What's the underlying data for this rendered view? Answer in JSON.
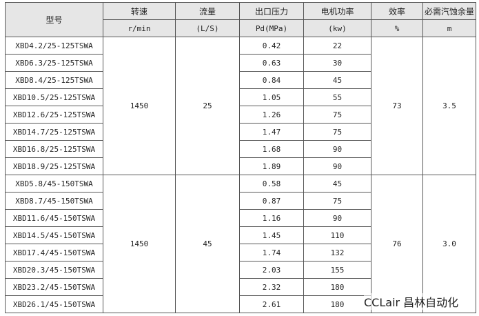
{
  "headers": {
    "model": "型号",
    "speed": "转速",
    "flow": "流量",
    "pressure": "出口压力",
    "power": "电机功率",
    "efficiency": "效率",
    "npsh": "必需汽蚀余量"
  },
  "units": {
    "speed": "r/min",
    "flow": "(L/S)",
    "pressure": "Pd(MPa)",
    "power": "(kw)",
    "efficiency": "%",
    "npsh": "m"
  },
  "groups": [
    {
      "speed": "1450",
      "flow": "25",
      "efficiency": "73",
      "npsh": "3.5",
      "rows": [
        {
          "model": "XBD4.2/25-125TSWA",
          "pressure": "0.42",
          "power": "22"
        },
        {
          "model": "XBD6.3/25-125TSWA",
          "pressure": "0.63",
          "power": "30"
        },
        {
          "model": "XBD8.4/25-125TSWA",
          "pressure": "0.84",
          "power": "45"
        },
        {
          "model": "XBD10.5/25-125TSWA",
          "pressure": "1.05",
          "power": "55"
        },
        {
          "model": "XBD12.6/25-125TSWA",
          "pressure": "1.26",
          "power": "75"
        },
        {
          "model": "XBD14.7/25-125TSWA",
          "pressure": "1.47",
          "power": "75"
        },
        {
          "model": "XBD16.8/25-125TSWA",
          "pressure": "1.68",
          "power": "90"
        },
        {
          "model": "XBD18.9/25-125TSWA",
          "pressure": "1.89",
          "power": "90"
        }
      ]
    },
    {
      "speed": "1450",
      "flow": "45",
      "efficiency": "76",
      "npsh": "3.0",
      "rows": [
        {
          "model": "XBD5.8/45-150TSWA",
          "pressure": "0.58",
          "power": "45"
        },
        {
          "model": "XBD8.7/45-150TSWA",
          "pressure": "0.87",
          "power": "75"
        },
        {
          "model": "XBD11.6/45-150TSWA",
          "pressure": "1.16",
          "power": "90"
        },
        {
          "model": "XBD14.5/45-150TSWA",
          "pressure": "1.45",
          "power": "110"
        },
        {
          "model": "XBD17.4/45-150TSWA",
          "pressure": "1.74",
          "power": "132"
        },
        {
          "model": "XBD20.3/45-150TSWA",
          "pressure": "2.03",
          "power": "155"
        },
        {
          "model": "XBD23.2/45-150TSWA",
          "pressure": "2.32",
          "power": "180"
        },
        {
          "model": "XBD26.1/45-150TSWA",
          "pressure": "2.61",
          "power": "180"
        }
      ]
    }
  ],
  "watermark": "CCLair 昌林自动化"
}
